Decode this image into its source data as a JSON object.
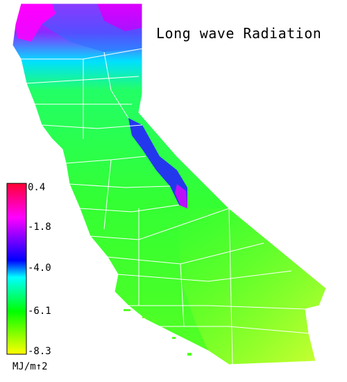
{
  "map": {
    "title": "Long wave Radiation",
    "legend": {
      "ticks": [
        "0.4",
        "-1.8",
        "-4.0",
        "-6.1",
        "-8.3"
      ],
      "unit": "MJ/m↑2",
      "colors": [
        "#ff0033",
        "#ff00ff",
        "#0000ff",
        "#00ffff",
        "#00ff00",
        "#ffff00"
      ]
    },
    "palette": {
      "dominant": "#33ff33",
      "north_high": "#ff00ff",
      "north_mid": "#8800ff",
      "sierra": "#2222ff",
      "desert": "#ccff33",
      "boundary": "#ffffff"
    }
  }
}
